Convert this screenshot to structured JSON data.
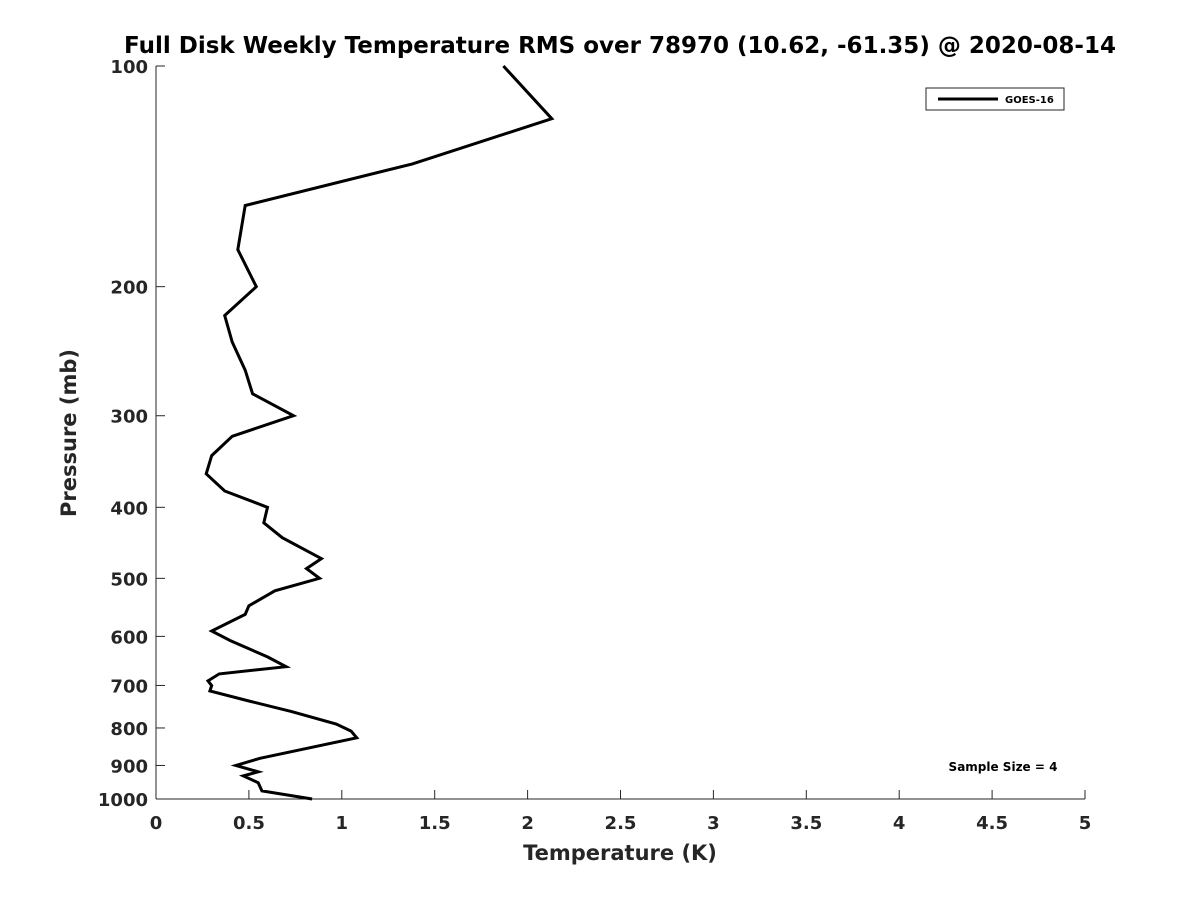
{
  "chart_data": {
    "type": "line",
    "title": "Full Disk Weekly Temperature RMS over 78970 (10.62, -61.35) @ 2020-08-14",
    "xlabel": "Temperature (K)",
    "ylabel": "Pressure (mb)",
    "xlim": [
      0,
      5
    ],
    "ylim": [
      100,
      1000
    ],
    "yscale": "log",
    "yreversed": true,
    "xticks": [
      0,
      0.5,
      1,
      1.5,
      2,
      2.5,
      3,
      3.5,
      4,
      4.5,
      5
    ],
    "xtick_labels": [
      "0",
      "0.5",
      "1",
      "1.5",
      "2",
      "2.5",
      "3",
      "3.5",
      "4",
      "4.5",
      "5"
    ],
    "yticks": [
      100,
      200,
      300,
      400,
      500,
      600,
      700,
      800,
      900,
      1000
    ],
    "ytick_labels": [
      "100",
      "200",
      "300",
      "400",
      "500",
      "600",
      "700",
      "800",
      "900",
      "1000"
    ],
    "legend": {
      "position": "top-right",
      "entries": [
        "GOES-16"
      ]
    },
    "annotation": "Sample Size = 4",
    "series": [
      {
        "name": "GOES-16",
        "color": "#000000",
        "points": [
          [
            1.87,
            100
          ],
          [
            2.13,
            118
          ],
          [
            1.38,
            136
          ],
          [
            0.48,
            155
          ],
          [
            0.44,
            178
          ],
          [
            0.54,
            200
          ],
          [
            0.37,
            219
          ],
          [
            0.41,
            238
          ],
          [
            0.48,
            260
          ],
          [
            0.52,
            280
          ],
          [
            0.74,
            300
          ],
          [
            0.41,
            320
          ],
          [
            0.3,
            340
          ],
          [
            0.27,
            360
          ],
          [
            0.37,
            380
          ],
          [
            0.6,
            400
          ],
          [
            0.58,
            420
          ],
          [
            0.68,
            440
          ],
          [
            0.89,
            470
          ],
          [
            0.81,
            485
          ],
          [
            0.88,
            500
          ],
          [
            0.64,
            520
          ],
          [
            0.5,
            545
          ],
          [
            0.48,
            560
          ],
          [
            0.3,
            590
          ],
          [
            0.4,
            608
          ],
          [
            0.6,
            640
          ],
          [
            0.7,
            660
          ],
          [
            0.34,
            675
          ],
          [
            0.28,
            690
          ],
          [
            0.3,
            700
          ],
          [
            0.29,
            712
          ],
          [
            0.5,
            735
          ],
          [
            0.73,
            760
          ],
          [
            0.97,
            790
          ],
          [
            1.05,
            808
          ],
          [
            1.08,
            825
          ],
          [
            0.56,
            880
          ],
          [
            0.43,
            900
          ],
          [
            0.55,
            918
          ],
          [
            0.47,
            930
          ],
          [
            0.55,
            950
          ],
          [
            0.57,
            975
          ],
          [
            0.84,
            1000
          ]
        ]
      }
    ]
  }
}
